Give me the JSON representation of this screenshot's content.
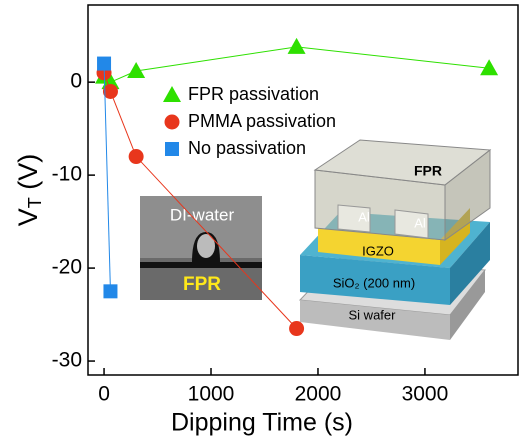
{
  "chart_data": {
    "type": "line",
    "xlabel": "Dipping Time (s)",
    "ylabel": [
      "V",
      "T",
      " (V)"
    ],
    "xlim": [
      -150,
      3870
    ],
    "ylim": [
      -31.5,
      8.3
    ],
    "xticks": [
      0,
      1000,
      2000,
      3000
    ],
    "yticks": [
      0,
      -10,
      -20,
      -30
    ],
    "legend": "upper center",
    "series": [
      {
        "name": "FPR passivation",
        "color": "#2ee000",
        "marker": "triangle",
        "x": [
          0,
          60,
          300,
          1800,
          3600
        ],
        "values": [
          0.6,
          0,
          1.2,
          3.8,
          1.5
        ]
      },
      {
        "name": "PMMA passivation",
        "color": "#e8361c",
        "marker": "circle",
        "x": [
          0,
          60,
          300,
          1800
        ],
        "values": [
          1,
          -1,
          -8,
          -26.5
        ]
      },
      {
        "name": "No passivation",
        "color": "#2288e8",
        "marker": "square",
        "x": [
          0,
          60
        ],
        "values": [
          2,
          -22.5
        ]
      }
    ],
    "insets": {
      "photo": [
        "DI-water",
        "FPR"
      ],
      "device": {
        "top": "FPR",
        "electrodes": [
          "Al",
          "Al"
        ],
        "layers": [
          "IGZO",
          "SiO₂ (200 nm)",
          "Si wafer"
        ]
      }
    }
  }
}
